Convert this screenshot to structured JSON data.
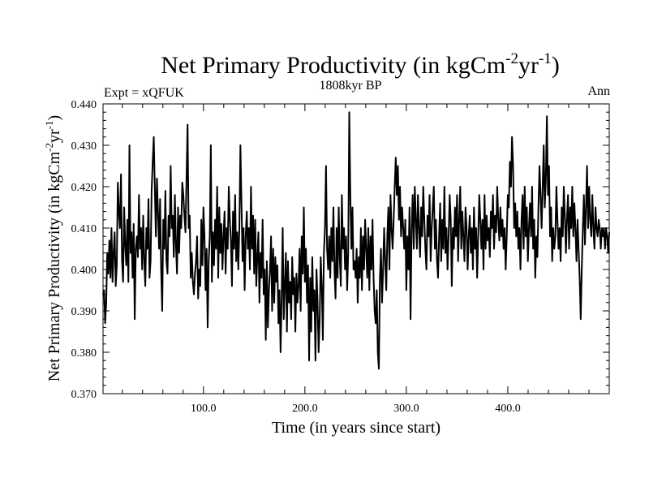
{
  "chart_data": {
    "type": "line",
    "title": "Net Primary Productivity (in kgCm",
    "title_sup1": "-2",
    "title_mid": "yr",
    "title_sup2": "-1",
    "title_end": ")",
    "left_label": "Expt = xQFUK",
    "center_label": "1808kyr BP",
    "right_label": "Ann",
    "xlabel": "Time (in years since start)",
    "ylabel": "Net Primary Productivity (in kgCm",
    "ylabel_sup1": "-2",
    "ylabel_mid": "yr",
    "ylabel_sup2": "-1",
    "ylabel_end": ")",
    "xlim": [
      1,
      500
    ],
    "ylim": [
      0.37,
      0.44
    ],
    "xticks": [
      100,
      200,
      300,
      400
    ],
    "xtick_labels": [
      "100.0",
      "200.0",
      "300.0",
      "400.0"
    ],
    "yticks": [
      0.37,
      0.38,
      0.39,
      0.4,
      0.41,
      0.42,
      0.43,
      0.44
    ],
    "ytick_labels": [
      "0.370",
      "0.380",
      "0.390",
      "0.400",
      "0.410",
      "0.420",
      "0.430",
      "0.440"
    ],
    "series": [
      {
        "name": "Net Primary Productivity",
        "color": "#000000",
        "values": [
          0.394,
          0.395,
          0.387,
          0.392,
          0.404,
          0.399,
          0.407,
          0.398,
          0.41,
          0.397,
          0.404,
          0.409,
          0.396,
          0.401,
          0.421,
          0.414,
          0.41,
          0.423,
          0.402,
          0.397,
          0.415,
          0.406,
          0.401,
          0.412,
          0.397,
          0.43,
          0.404,
          0.409,
          0.398,
          0.411,
          0.388,
          0.405,
          0.408,
          0.403,
          0.418,
          0.405,
          0.41,
          0.4,
          0.413,
          0.402,
          0.396,
          0.41,
          0.405,
          0.417,
          0.398,
          0.402,
          0.419,
          0.426,
          0.432,
          0.42,
          0.408,
          0.422,
          0.414,
          0.405,
          0.417,
          0.4,
          0.39,
          0.412,
          0.405,
          0.419,
          0.402,
          0.399,
          0.413,
          0.408,
          0.425,
          0.41,
          0.413,
          0.403,
          0.418,
          0.406,
          0.399,
          0.415,
          0.404,
          0.413,
          0.41,
          0.421,
          0.418,
          0.413,
          0.409,
          0.422,
          0.435,
          0.41,
          0.413,
          0.398,
          0.404,
          0.397,
          0.394,
          0.399,
          0.402,
          0.408,
          0.393,
          0.4,
          0.396,
          0.412,
          0.401,
          0.415,
          0.408,
          0.395,
          0.405,
          0.386,
          0.402,
          0.408,
          0.43,
          0.397,
          0.409,
          0.401,
          0.412,
          0.405,
          0.42,
          0.398,
          0.415,
          0.404,
          0.411,
          0.4,
          0.408,
          0.414,
          0.399,
          0.41,
          0.405,
          0.42,
          0.412,
          0.407,
          0.396,
          0.414,
          0.405,
          0.418,
          0.402,
          0.409,
          0.4,
          0.41,
          0.43,
          0.416,
          0.402,
          0.41,
          0.395,
          0.408,
          0.414,
          0.405,
          0.41,
          0.4,
          0.42,
          0.405,
          0.413,
          0.399,
          0.412,
          0.396,
          0.403,
          0.409,
          0.392,
          0.404,
          0.398,
          0.412,
          0.394,
          0.4,
          0.383,
          0.402,
          0.386,
          0.395,
          0.4,
          0.408,
          0.39,
          0.405,
          0.392,
          0.403,
          0.397,
          0.401,
          0.387,
          0.395,
          0.38,
          0.393,
          0.41,
          0.388,
          0.396,
          0.404,
          0.385,
          0.402,
          0.392,
          0.397,
          0.388,
          0.403,
          0.394,
          0.398,
          0.385,
          0.399,
          0.392,
          0.396,
          0.405,
          0.39,
          0.408,
          0.399,
          0.415,
          0.397,
          0.405,
          0.392,
          0.401,
          0.378,
          0.398,
          0.385,
          0.403,
          0.39,
          0.395,
          0.378,
          0.4,
          0.392,
          0.38,
          0.388,
          0.403,
          0.396,
          0.383,
          0.404,
          0.41,
          0.425,
          0.405,
          0.4,
          0.408,
          0.398,
          0.41,
          0.402,
          0.415,
          0.4,
          0.393,
          0.41,
          0.398,
          0.415,
          0.403,
          0.396,
          0.418,
          0.405,
          0.41,
          0.4,
          0.408,
          0.395,
          0.404,
          0.438,
          0.418,
          0.405,
          0.415,
          0.4,
          0.402,
          0.398,
          0.405,
          0.392,
          0.403,
          0.398,
          0.41,
          0.395,
          0.408,
          0.4,
          0.412,
          0.405,
          0.398,
          0.41,
          0.395,
          0.408,
          0.4,
          0.412,
          0.398,
          0.39,
          0.387,
          0.395,
          0.38,
          0.376,
          0.398,
          0.405,
          0.392,
          0.4,
          0.41,
          0.402,
          0.395,
          0.408,
          0.415,
          0.4,
          0.418,
          0.41,
          0.405,
          0.412,
          0.42,
          0.427,
          0.418,
          0.425,
          0.412,
          0.42,
          0.408,
          0.415,
          0.41,
          0.405,
          0.412,
          0.395,
          0.408,
          0.4,
          0.415,
          0.388,
          0.41,
          0.418,
          0.405,
          0.42,
          0.412,
          0.405,
          0.418,
          0.41,
          0.403,
          0.415,
          0.408,
          0.42,
          0.412,
          0.405,
          0.4,
          0.413,
          0.408,
          0.418,
          0.402,
          0.41,
          0.415,
          0.42,
          0.405,
          0.412,
          0.402,
          0.398,
          0.408,
          0.416,
          0.402,
          0.412,
          0.405,
          0.42,
          0.404,
          0.41,
          0.4,
          0.408,
          0.418,
          0.412,
          0.396,
          0.41,
          0.405,
          0.415,
          0.408,
          0.418,
          0.402,
          0.412,
          0.42,
          0.405,
          0.414,
          0.408,
          0.402,
          0.415,
          0.41,
          0.4,
          0.408,
          0.413,
          0.404,
          0.41,
          0.4,
          0.415,
          0.405,
          0.41,
          0.398,
          0.408,
          0.418,
          0.412,
          0.405,
          0.412,
          0.4,
          0.418,
          0.405,
          0.413,
          0.407,
          0.41,
          0.403,
          0.414,
          0.41,
          0.418,
          0.405,
          0.413,
          0.409,
          0.42,
          0.412,
          0.407,
          0.415,
          0.408,
          0.412,
          0.405,
          0.41,
          0.4,
          0.408,
          0.418,
          0.415,
          0.426,
          0.42,
          0.432,
          0.425,
          0.41,
          0.416,
          0.408,
          0.414,
          0.405,
          0.41,
          0.4,
          0.412,
          0.418,
          0.405,
          0.42,
          0.408,
          0.415,
          0.402,
          0.41,
          0.416,
          0.408,
          0.42,
          0.405,
          0.412,
          0.398,
          0.408,
          0.403,
          0.415,
          0.425,
          0.418,
          0.41,
          0.42,
          0.43,
          0.415,
          0.422,
          0.437,
          0.418,
          0.425,
          0.408,
          0.415,
          0.402,
          0.41,
          0.405,
          0.408,
          0.42,
          0.412,
          0.405,
          0.41,
          0.402,
          0.415,
          0.408,
          0.42,
          0.413,
          0.404,
          0.412,
          0.418,
          0.405,
          0.415,
          0.41,
          0.42,
          0.408,
          0.416,
          0.41,
          0.402,
          0.412,
          0.405,
          0.398,
          0.388,
          0.4,
          0.41,
          0.418,
          0.406,
          0.415,
          0.425,
          0.41,
          0.42,
          0.412,
          0.408,
          0.418,
          0.41,
          0.405,
          0.415,
          0.41,
          0.408,
          0.412,
          0.41,
          0.405,
          0.41,
          0.408,
          0.41,
          0.405,
          0.41,
          0.408,
          0.404,
          0.409
        ]
      }
    ]
  }
}
